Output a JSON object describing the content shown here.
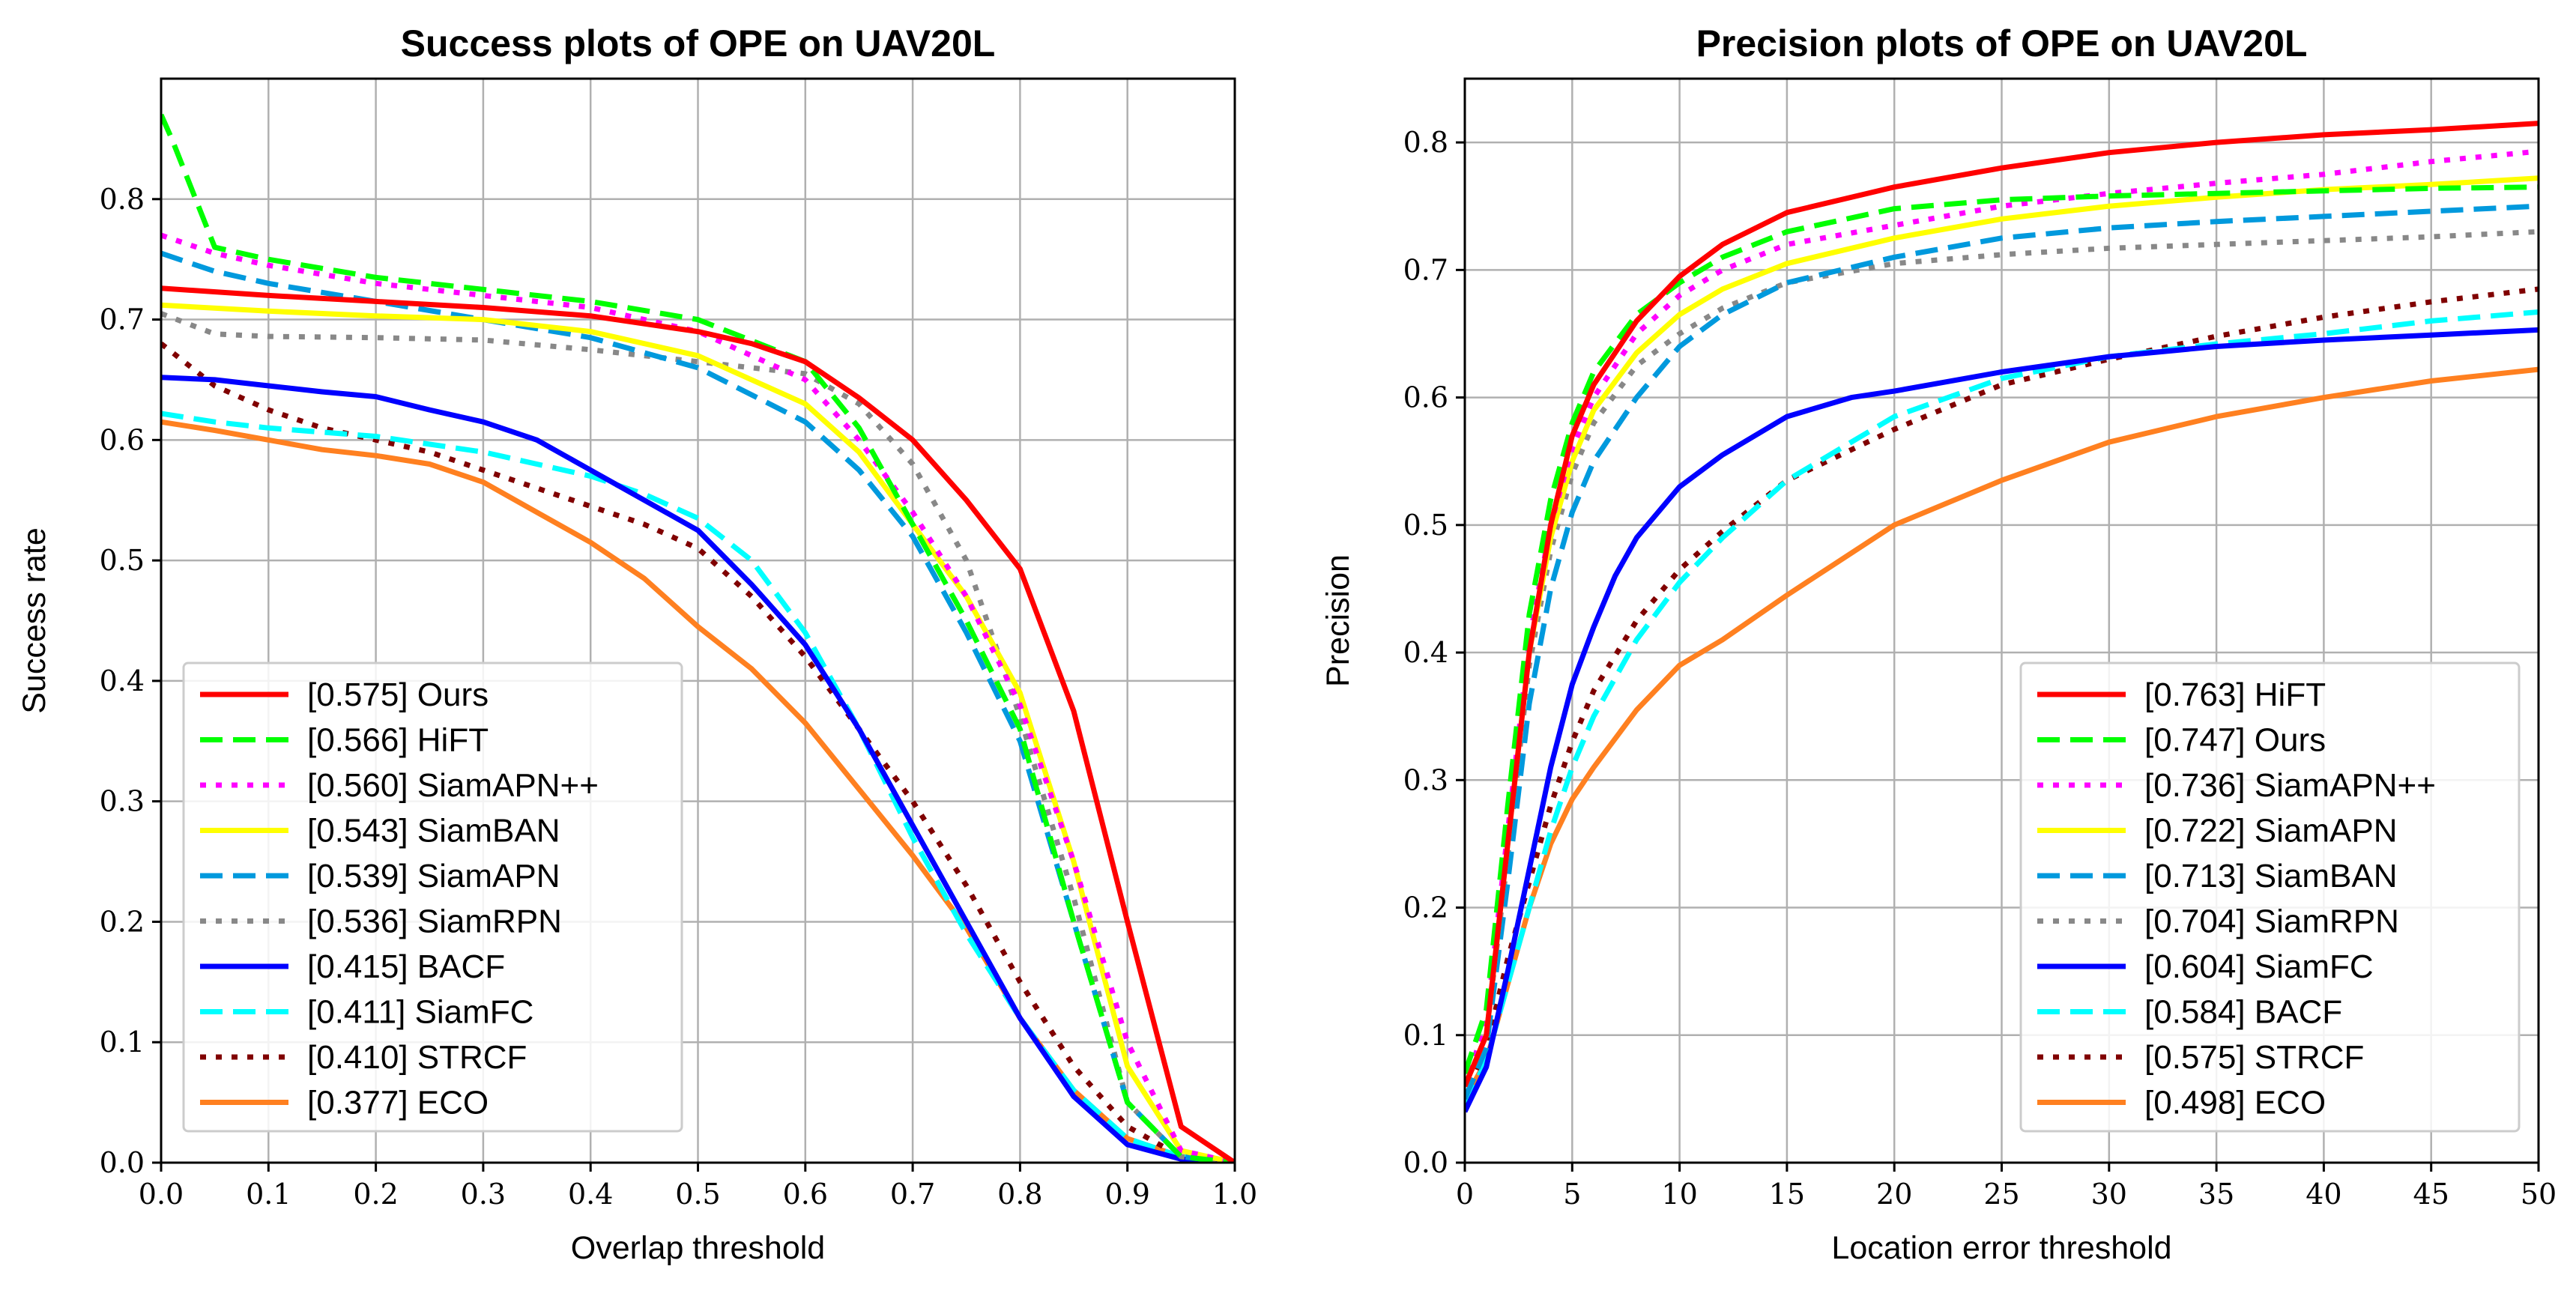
{
  "chart_data": [
    {
      "type": "line",
      "title": "Success plots of OPE on UAV20L",
      "xlabel": "Overlap threshold",
      "ylabel": "Success rate",
      "xlim": [
        0,
        1
      ],
      "ylim": [
        0,
        0.9
      ],
      "xticks": [
        0,
        0.1,
        0.2,
        0.3,
        0.4,
        0.5,
        0.6,
        0.7,
        0.8,
        0.9,
        1.0
      ],
      "xtick_labels": [
        "0.0",
        "0.1",
        "0.2",
        "0.3",
        "0.4",
        "0.5",
        "0.6",
        "0.7",
        "0.8",
        "0.9",
        "1.0"
      ],
      "yticks": [
        0,
        0.1,
        0.2,
        0.3,
        0.4,
        0.5,
        0.6,
        0.7,
        0.8
      ],
      "ytick_labels": [
        "0.0",
        "0.1",
        "0.2",
        "0.3",
        "0.4",
        "0.5",
        "0.6",
        "0.7",
        "0.8"
      ],
      "grid": true,
      "legend_position": "lower-left",
      "series": [
        {
          "name": "[0.575] Ours",
          "color": "#ff0000",
          "dash": "solid",
          "x": [
            0,
            0.1,
            0.2,
            0.3,
            0.4,
            0.5,
            0.55,
            0.6,
            0.65,
            0.7,
            0.75,
            0.8,
            0.85,
            0.9,
            0.95,
            1.0
          ],
          "y": [
            0.726,
            0.72,
            0.715,
            0.71,
            0.703,
            0.69,
            0.68,
            0.665,
            0.635,
            0.6,
            0.55,
            0.493,
            0.375,
            0.2,
            0.03,
            0
          ]
        },
        {
          "name": "[0.566] HiFT",
          "color": "#00ff00",
          "dash": "dashed",
          "x": [
            0,
            0.01,
            0.05,
            0.1,
            0.2,
            0.3,
            0.4,
            0.5,
            0.6,
            0.65,
            0.7,
            0.75,
            0.8,
            0.85,
            0.9,
            0.95,
            1.0
          ],
          "y": [
            0.87,
            0.85,
            0.76,
            0.75,
            0.735,
            0.725,
            0.715,
            0.7,
            0.665,
            0.61,
            0.53,
            0.45,
            0.36,
            0.2,
            0.05,
            0.005,
            0
          ]
        },
        {
          "name": "[0.560] SiamAPN++",
          "color": "#ff00ff",
          "dash": "dotted",
          "x": [
            0,
            0.05,
            0.1,
            0.2,
            0.3,
            0.4,
            0.5,
            0.6,
            0.65,
            0.7,
            0.75,
            0.8,
            0.85,
            0.9,
            0.95,
            1.0
          ],
          "y": [
            0.77,
            0.755,
            0.745,
            0.73,
            0.72,
            0.71,
            0.69,
            0.65,
            0.6,
            0.54,
            0.47,
            0.38,
            0.25,
            0.1,
            0.01,
            0
          ]
        },
        {
          "name": "[0.543] SiamBAN",
          "color": "#ffff00",
          "dash": "solid",
          "x": [
            0,
            0.1,
            0.2,
            0.3,
            0.4,
            0.5,
            0.6,
            0.65,
            0.7,
            0.75,
            0.8,
            0.85,
            0.9,
            0.95,
            1.0
          ],
          "y": [
            0.712,
            0.707,
            0.703,
            0.7,
            0.69,
            0.67,
            0.63,
            0.59,
            0.53,
            0.47,
            0.39,
            0.25,
            0.08,
            0.01,
            0
          ]
        },
        {
          "name": "[0.539] SiamAPN",
          "color": "#0099dd",
          "dash": "dashed",
          "x": [
            0,
            0.05,
            0.1,
            0.2,
            0.3,
            0.4,
            0.5,
            0.6,
            0.65,
            0.7,
            0.75,
            0.8,
            0.85,
            0.9,
            0.95,
            1.0
          ],
          "y": [
            0.755,
            0.74,
            0.73,
            0.715,
            0.7,
            0.685,
            0.66,
            0.615,
            0.575,
            0.52,
            0.44,
            0.35,
            0.2,
            0.05,
            0.005,
            0
          ]
        },
        {
          "name": "[0.536] SiamRPN",
          "color": "#888888",
          "dash": "dotted",
          "x": [
            0,
            0.05,
            0.1,
            0.2,
            0.3,
            0.4,
            0.5,
            0.55,
            0.6,
            0.65,
            0.7,
            0.75,
            0.8,
            0.85,
            0.9,
            0.95,
            1.0
          ],
          "y": [
            0.705,
            0.688,
            0.686,
            0.685,
            0.683,
            0.675,
            0.665,
            0.66,
            0.655,
            0.63,
            0.58,
            0.5,
            0.37,
            0.22,
            0.05,
            0.005,
            0
          ]
        },
        {
          "name": "[0.415] BACF",
          "color": "#0000ff",
          "dash": "solid",
          "x": [
            0,
            0.05,
            0.1,
            0.15,
            0.2,
            0.25,
            0.3,
            0.35,
            0.4,
            0.45,
            0.5,
            0.55,
            0.6,
            0.65,
            0.7,
            0.75,
            0.8,
            0.85,
            0.9,
            0.95,
            1.0
          ],
          "y": [
            0.652,
            0.65,
            0.645,
            0.64,
            0.636,
            0.625,
            0.615,
            0.6,
            0.575,
            0.55,
            0.525,
            0.48,
            0.43,
            0.36,
            0.28,
            0.2,
            0.12,
            0.055,
            0.015,
            0.003,
            0
          ]
        },
        {
          "name": "[0.411] SiamFC",
          "color": "#00ffff",
          "dash": "dashed",
          "x": [
            0,
            0.05,
            0.1,
            0.2,
            0.3,
            0.4,
            0.45,
            0.5,
            0.55,
            0.6,
            0.65,
            0.7,
            0.75,
            0.8,
            0.85,
            0.9,
            0.95,
            1.0
          ],
          "y": [
            0.622,
            0.615,
            0.61,
            0.603,
            0.59,
            0.57,
            0.555,
            0.535,
            0.5,
            0.44,
            0.36,
            0.27,
            0.19,
            0.12,
            0.06,
            0.02,
            0.005,
            0
          ]
        },
        {
          "name": "[0.410] STRCF",
          "color": "#800000",
          "dash": "dotted",
          "x": [
            0,
            0.05,
            0.1,
            0.15,
            0.2,
            0.25,
            0.3,
            0.35,
            0.4,
            0.45,
            0.5,
            0.55,
            0.6,
            0.65,
            0.7,
            0.75,
            0.8,
            0.85,
            0.9,
            0.95,
            1.0
          ],
          "y": [
            0.68,
            0.645,
            0.625,
            0.61,
            0.6,
            0.59,
            0.575,
            0.56,
            0.545,
            0.53,
            0.51,
            0.47,
            0.42,
            0.36,
            0.3,
            0.23,
            0.15,
            0.08,
            0.03,
            0.005,
            0
          ]
        },
        {
          "name": "[0.377] ECO",
          "color": "#ff8020",
          "dash": "solid",
          "x": [
            0,
            0.05,
            0.1,
            0.15,
            0.2,
            0.25,
            0.3,
            0.35,
            0.4,
            0.45,
            0.5,
            0.55,
            0.6,
            0.65,
            0.7,
            0.75,
            0.8,
            0.85,
            0.9,
            0.95,
            1.0
          ],
          "y": [
            0.615,
            0.608,
            0.6,
            0.592,
            0.587,
            0.58,
            0.565,
            0.54,
            0.515,
            0.485,
            0.445,
            0.41,
            0.365,
            0.31,
            0.255,
            0.195,
            0.12,
            0.06,
            0.02,
            0.005,
            0
          ]
        }
      ]
    },
    {
      "type": "line",
      "title": "Precision plots of OPE on UAV20L",
      "xlabel": "Location error threshold",
      "ylabel": "Precision",
      "xlim": [
        0,
        50
      ],
      "ylim": [
        0,
        0.85
      ],
      "xticks": [
        0,
        5,
        10,
        15,
        20,
        25,
        30,
        35,
        40,
        45,
        50
      ],
      "xtick_labels": [
        "0",
        "5",
        "10",
        "15",
        "20",
        "25",
        "30",
        "35",
        "40",
        "45",
        "50"
      ],
      "yticks": [
        0,
        0.1,
        0.2,
        0.3,
        0.4,
        0.5,
        0.6,
        0.7,
        0.8
      ],
      "ytick_labels": [
        "0.0",
        "0.1",
        "0.2",
        "0.3",
        "0.4",
        "0.5",
        "0.6",
        "0.7",
        "0.8"
      ],
      "grid": true,
      "legend_position": "lower-right",
      "series": [
        {
          "name": "[0.763] HiFT",
          "color": "#ff0000",
          "dash": "solid",
          "x": [
            0,
            1,
            2,
            3,
            4,
            5,
            6,
            8,
            10,
            12,
            15,
            20,
            25,
            30,
            35,
            40,
            45,
            50
          ],
          "y": [
            0.06,
            0.1,
            0.25,
            0.4,
            0.5,
            0.57,
            0.61,
            0.66,
            0.695,
            0.72,
            0.745,
            0.765,
            0.78,
            0.792,
            0.8,
            0.806,
            0.81,
            0.815
          ]
        },
        {
          "name": "[0.747] Ours",
          "color": "#00ff00",
          "dash": "dashed",
          "x": [
            0,
            1,
            2,
            3,
            4,
            5,
            6,
            8,
            10,
            12,
            15,
            20,
            25,
            30,
            35,
            40,
            45,
            50
          ],
          "y": [
            0.07,
            0.12,
            0.28,
            0.43,
            0.52,
            0.58,
            0.62,
            0.665,
            0.69,
            0.71,
            0.73,
            0.748,
            0.755,
            0.758,
            0.76,
            0.762,
            0.764,
            0.765
          ]
        },
        {
          "name": "[0.736] SiamAPN++",
          "color": "#ff00ff",
          "dash": "dotted",
          "x": [
            0,
            1,
            2,
            3,
            4,
            5,
            6,
            8,
            10,
            12,
            15,
            20,
            25,
            30,
            35,
            40,
            45,
            50
          ],
          "y": [
            0.06,
            0.11,
            0.26,
            0.41,
            0.5,
            0.56,
            0.6,
            0.65,
            0.68,
            0.7,
            0.72,
            0.735,
            0.75,
            0.76,
            0.768,
            0.775,
            0.785,
            0.793
          ]
        },
        {
          "name": "[0.722] SiamAPN",
          "color": "#ffff00",
          "dash": "solid",
          "x": [
            0,
            1,
            2,
            3,
            4,
            5,
            6,
            8,
            10,
            12,
            15,
            20,
            25,
            30,
            35,
            40,
            45,
            50
          ],
          "y": [
            0.06,
            0.1,
            0.25,
            0.4,
            0.49,
            0.55,
            0.59,
            0.635,
            0.665,
            0.685,
            0.705,
            0.725,
            0.74,
            0.75,
            0.757,
            0.763,
            0.767,
            0.772
          ]
        },
        {
          "name": "[0.713] SiamBAN",
          "color": "#0099dd",
          "dash": "dashed",
          "x": [
            0,
            1,
            2,
            3,
            4,
            5,
            6,
            8,
            10,
            12,
            15,
            20,
            25,
            30,
            35,
            40,
            45,
            50
          ],
          "y": [
            0.05,
            0.09,
            0.22,
            0.36,
            0.45,
            0.51,
            0.55,
            0.6,
            0.64,
            0.665,
            0.69,
            0.71,
            0.725,
            0.733,
            0.738,
            0.742,
            0.746,
            0.75
          ]
        },
        {
          "name": "[0.704] SiamRPN",
          "color": "#888888",
          "dash": "dotted",
          "x": [
            0,
            1,
            2,
            3,
            4,
            5,
            6,
            8,
            10,
            12,
            15,
            20,
            25,
            30,
            35,
            40,
            45,
            50
          ],
          "y": [
            0.06,
            0.1,
            0.24,
            0.39,
            0.48,
            0.54,
            0.58,
            0.625,
            0.65,
            0.67,
            0.69,
            0.705,
            0.712,
            0.717,
            0.72,
            0.723,
            0.726,
            0.73
          ]
        },
        {
          "name": "[0.604] SiamFC",
          "color": "#0000ff",
          "dash": "solid",
          "x": [
            0,
            1,
            2,
            3,
            4,
            5,
            6,
            7,
            8,
            10,
            12,
            15,
            18,
            20,
            25,
            30,
            35,
            40,
            45,
            50
          ],
          "y": [
            0.04,
            0.075,
            0.15,
            0.23,
            0.31,
            0.375,
            0.42,
            0.46,
            0.49,
            0.53,
            0.555,
            0.585,
            0.6,
            0.605,
            0.62,
            0.632,
            0.64,
            0.645,
            0.649,
            0.653
          ]
        },
        {
          "name": "[0.584] BACF",
          "color": "#00ffff",
          "dash": "dashed",
          "x": [
            0,
            1,
            2,
            3,
            4,
            5,
            6,
            8,
            10,
            12,
            15,
            20,
            25,
            30,
            35,
            40,
            45,
            50
          ],
          "y": [
            0.045,
            0.08,
            0.14,
            0.2,
            0.26,
            0.31,
            0.35,
            0.41,
            0.455,
            0.49,
            0.535,
            0.585,
            0.615,
            0.632,
            0.642,
            0.65,
            0.66,
            0.667
          ]
        },
        {
          "name": "[0.575] STRCF",
          "color": "#800000",
          "dash": "dotted",
          "x": [
            0,
            1,
            2,
            3,
            4,
            5,
            6,
            8,
            10,
            12,
            15,
            20,
            25,
            30,
            35,
            40,
            45,
            50
          ],
          "y": [
            0.05,
            0.09,
            0.16,
            0.22,
            0.28,
            0.33,
            0.37,
            0.425,
            0.465,
            0.495,
            0.535,
            0.575,
            0.61,
            0.63,
            0.648,
            0.663,
            0.675,
            0.685
          ]
        },
        {
          "name": "[0.498] ECO",
          "color": "#ff8020",
          "dash": "solid",
          "x": [
            0,
            1,
            2,
            3,
            4,
            5,
            6,
            8,
            10,
            12,
            15,
            20,
            25,
            30,
            35,
            40,
            45,
            50
          ],
          "y": [
            0.05,
            0.08,
            0.14,
            0.2,
            0.25,
            0.285,
            0.31,
            0.355,
            0.39,
            0.41,
            0.445,
            0.5,
            0.535,
            0.565,
            0.585,
            0.6,
            0.613,
            0.622
          ]
        }
      ]
    }
  ]
}
